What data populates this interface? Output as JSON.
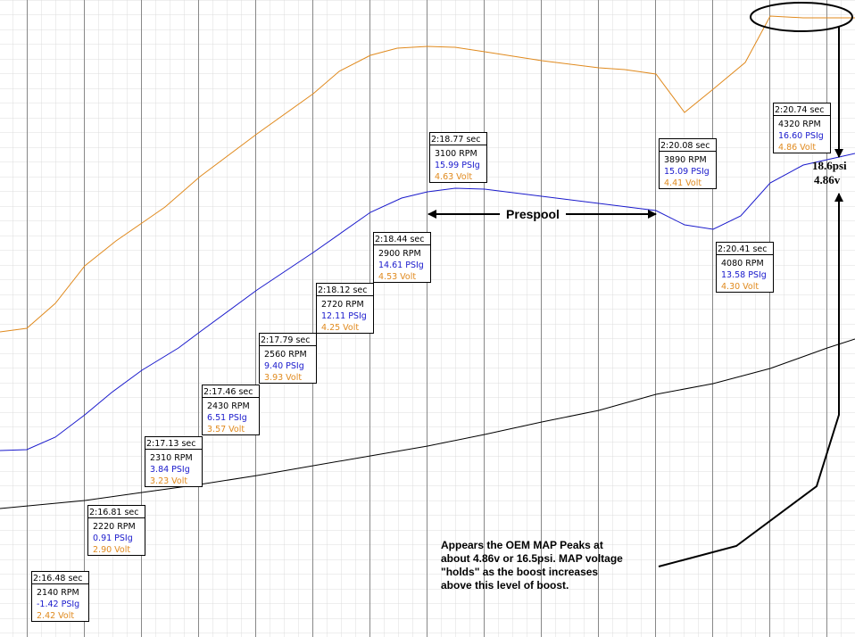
{
  "readouts": [
    {
      "time": "2:16.48 sec",
      "rpm": "2140 RPM",
      "psi": "-1.42 PSIg",
      "volt": "2.42 Volt"
    },
    {
      "time": "2:16.81 sec",
      "rpm": "2220 RPM",
      "psi": "0.91 PSIg",
      "volt": "2.90 Volt"
    },
    {
      "time": "2:17.13 sec",
      "rpm": "2310 RPM",
      "psi": "3.84 PSIg",
      "volt": "3.23 Volt"
    },
    {
      "time": "2:17.46 sec",
      "rpm": "2430 RPM",
      "psi": "6.51 PSIg",
      "volt": "3.57 Volt"
    },
    {
      "time": "2:17.79 sec",
      "rpm": "2560 RPM",
      "psi": "9.40 PSIg",
      "volt": "3.93 Volt"
    },
    {
      "time": "2:18.12 sec",
      "rpm": "2720 RPM",
      "psi": "12.11 PSIg",
      "volt": "4.25 Volt"
    },
    {
      "time": "2:18.44 sec",
      "rpm": "2900 RPM",
      "psi": "14.61 PSIg",
      "volt": "4.53 Volt"
    },
    {
      "time": "2:18.77 sec",
      "rpm": "3100 RPM",
      "psi": "15.99 PSIg",
      "volt": "4.63 Volt"
    },
    {
      "time": "2:20.08 sec",
      "rpm": "3890 RPM",
      "psi": "15.09 PSIg",
      "volt": "4.41 Volt"
    },
    {
      "time": "2:20.41 sec",
      "rpm": "4080 RPM",
      "psi": "13.58 PSIg",
      "volt": "4.30 Volt"
    },
    {
      "time": "2:20.74 sec",
      "rpm": "4320 RPM",
      "psi": "16.60 PSIg",
      "volt": "4.86 Volt"
    }
  ],
  "annotations": {
    "prespool": "Prespool",
    "peak_psi": "18.6psi",
    "peak_volt": "4.86v",
    "note": [
      "Appears the OEM MAP Peaks at",
      "about 4.86v or 16.5psi. MAP voltage",
      "\"holds\" as the boost increases",
      "above this level of boost."
    ]
  }
}
